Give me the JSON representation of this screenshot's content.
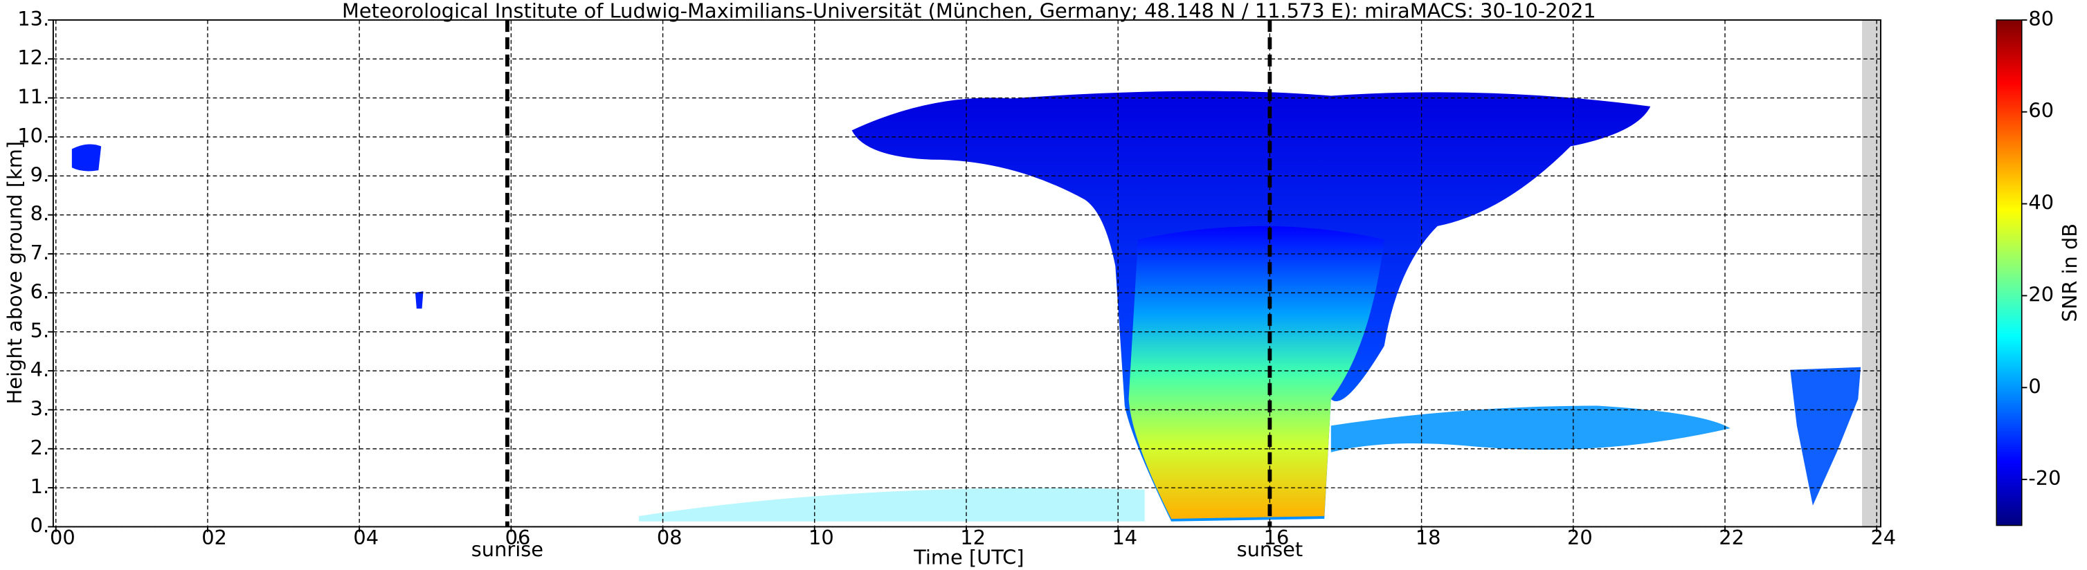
{
  "chart_data": {
    "type": "heatmap",
    "title": "Meteorological Institute of Ludwig-Maximilians-Universität (München, Germany; 48.148 N / 11.573 E):    miraMACS: 30-10-2021",
    "xlabel": "Time [UTC]",
    "ylabel": "Height above ground [km]",
    "xlim": [
      0,
      24
    ],
    "ylim": [
      0,
      13
    ],
    "xticks": [
      {
        "value": 0,
        "label": "00"
      },
      {
        "value": 2,
        "label": "02"
      },
      {
        "value": 4,
        "label": "04"
      },
      {
        "value": 6,
        "label": "06"
      },
      {
        "value": 8,
        "label": "08"
      },
      10,
      12,
      14,
      16,
      18,
      20,
      22,
      24
    ],
    "yticks": [
      {
        "value": 0,
        "label": "0."
      },
      {
        "value": 1,
        "label": "1."
      },
      {
        "value": 2,
        "label": "2."
      },
      {
        "value": 3,
        "label": "3."
      },
      {
        "value": 4,
        "label": "4."
      },
      {
        "value": 5,
        "label": "5."
      },
      {
        "value": 6,
        "label": "6."
      },
      {
        "value": 7,
        "label": "7."
      },
      {
        "value": 8,
        "label": "8."
      },
      {
        "value": 9,
        "label": "9."
      },
      {
        "value": 10,
        "label": "10."
      },
      {
        "value": 11,
        "label": "11."
      },
      {
        "value": 12,
        "label": "12."
      },
      {
        "value": 13,
        "label": "13."
      }
    ],
    "grid": true,
    "annotations": [
      {
        "text": "sunrise",
        "x": 5.95
      },
      {
        "text": "sunset",
        "x": 16.0
      }
    ],
    "colorbar": {
      "label": "SNR in dB",
      "lim": [
        -30,
        80
      ],
      "ticks": [
        -20,
        0,
        20,
        40,
        60,
        80
      ]
    },
    "colorscale": [
      "#00007f",
      "#0000ff",
      "#0080ff",
      "#00ffff",
      "#80ff80",
      "#ffff00",
      "#ff8000",
      "#ff0000",
      "#7f0000"
    ]
  }
}
